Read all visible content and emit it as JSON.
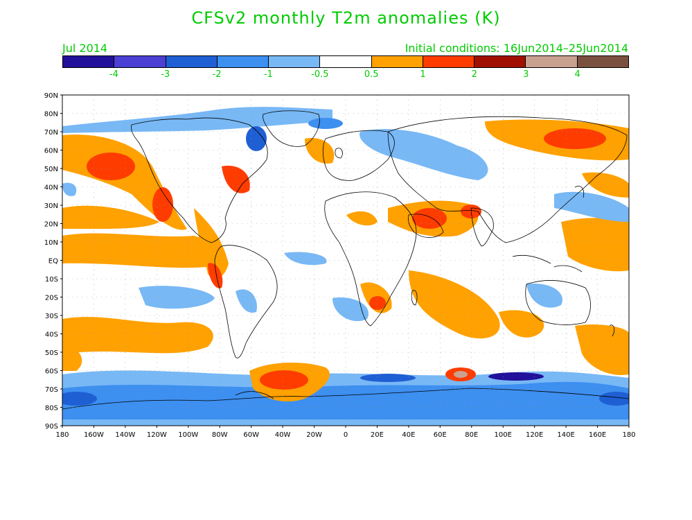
{
  "title": "CFSv2 monthly T2m anomalies (K)",
  "month": "Jul 2014",
  "initial_conditions": "Initial conditions: 16Jun2014–25Jun2014",
  "legend": {
    "colors": [
      "#22119a",
      "#4b3fd4",
      "#1f5fd4",
      "#3d8ff0",
      "#78b8f5",
      "#ffffff",
      "#ffa100",
      "#ff3c00",
      "#a00f00",
      "#c9a191",
      "#7a5040"
    ],
    "labels": [
      "-4",
      "-3",
      "-2",
      "-1",
      "-0.5",
      "0.5",
      "1",
      "2",
      "3",
      "4"
    ]
  },
  "axes": {
    "lat_labels": [
      "90N",
      "80N",
      "70N",
      "60N",
      "50N",
      "40N",
      "30N",
      "20N",
      "10N",
      "EQ",
      "10S",
      "20S",
      "30S",
      "40S",
      "50S",
      "60S",
      "70S",
      "80S",
      "90S"
    ],
    "lon_labels": [
      "180",
      "160W",
      "140W",
      "120W",
      "100W",
      "80W",
      "60W",
      "40W",
      "20W",
      "0",
      "20E",
      "40E",
      "60E",
      "80E",
      "100E",
      "120E",
      "140E",
      "160E",
      "180"
    ]
  }
}
